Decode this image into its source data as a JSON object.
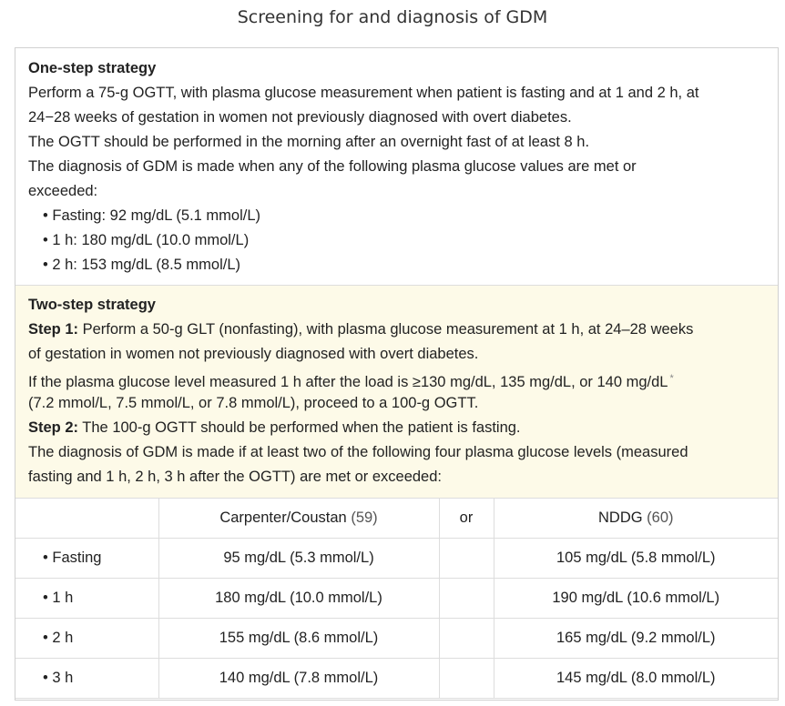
{
  "title": "Screening for and diagnosis of GDM",
  "one_step": {
    "heading": "One-step strategy",
    "line1": "Perform a 75-g OGTT, with plasma glucose measurement when patient is fasting and at 1 and 2 h, at",
    "line2": "24−28 weeks of gestation in women not previously diagnosed with overt diabetes.",
    "line3": "The OGTT should be performed in the morning after an overnight fast of at least 8 h.",
    "line4": "The diagnosis of GDM is made when any of the following plasma glucose values are met or",
    "line5": "exceeded:",
    "bullets": [
      "• Fasting: 92 mg/dL (5.1 mmol/L)",
      "• 1 h: 180 mg/dL (10.0 mmol/L)",
      "• 2 h: 153 mg/dL (8.5 mmol/L)"
    ]
  },
  "two_step": {
    "heading": "Two-step strategy",
    "step1_label": "Step 1:",
    "step1_line1": " Perform a 50-g GLT (nonfasting), with plasma glucose measurement at 1 h, at 24–28 weeks",
    "step1_line2": "of gestation in women not previously diagnosed with overt diabetes.",
    "line3": "If the plasma glucose level measured 1 h after the load is ≥130 mg/dL, 135 mg/dL, or 140 mg/dL",
    "footnote_mark": "*",
    "line4": "(7.2 mmol/L, 7.5 mmol/L, or 7.8 mmol/L), proceed to a 100-g OGTT.",
    "step2_label": "Step 2:",
    "step2_line": " The 100-g OGTT should be performed when the patient is fasting.",
    "line6": "The diagnosis of GDM is made if at least two of the following four plasma glucose levels (measured",
    "line7": "fasting and 1 h, 2 h, 3 h after the OGTT) are met or exceeded:"
  },
  "table": {
    "col1": "Carpenter/Coustan",
    "col1_ref": " (59)",
    "col_or": "or",
    "col2": "NDDG",
    "col2_ref": " (60)",
    "rows": [
      {
        "label": "• Fasting",
        "cc": "95 mg/dL (5.3 mmol/L)",
        "nddg": "105 mg/dL (5.8 mmol/L)"
      },
      {
        "label": "• 1 h",
        "cc": "180 mg/dL (10.0 mmol/L)",
        "nddg": "190 mg/dL (10.6 mmol/L)"
      },
      {
        "label": "• 2 h",
        "cc": "155 mg/dL (8.6 mmol/L)",
        "nddg": "165 mg/dL (9.2 mmol/L)"
      },
      {
        "label": "• 3 h",
        "cc": "140 mg/dL (7.8 mmol/L)",
        "nddg": "145 mg/dL (8.0 mmol/L)"
      }
    ]
  }
}
